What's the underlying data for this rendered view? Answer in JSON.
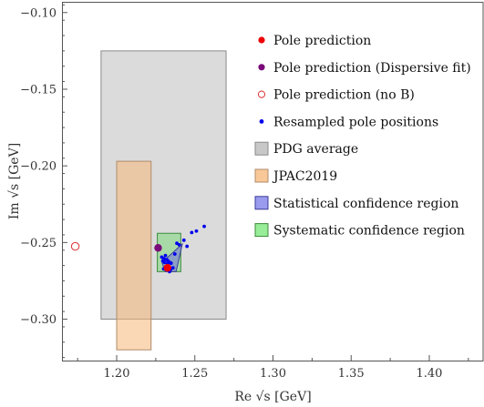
{
  "chart_data": {
    "type": "scatter",
    "xlabel": "Re √s [GeV]",
    "ylabel": "Im √s [GeV]",
    "xlim": [
      1.165,
      1.435
    ],
    "ylim": [
      -0.327,
      -0.093
    ],
    "x_ticks": [
      1.2,
      1.25,
      1.3,
      1.35,
      1.4
    ],
    "x_tick_labels": [
      "1.20",
      "1.25",
      "1.30",
      "1.35",
      "1.40"
    ],
    "y_ticks": [
      -0.1,
      -0.15,
      -0.2,
      -0.25,
      -0.3
    ],
    "y_tick_labels": [
      "−0.10",
      "−0.15",
      "−0.20",
      "−0.25",
      "−0.30"
    ],
    "grid": false,
    "legend_position": "top-right inside",
    "regions": [
      {
        "name": "PDG average",
        "kind": "rect",
        "x": [
          1.19,
          1.27
        ],
        "y": [
          -0.3,
          -0.125
        ],
        "fill": "#c8c8c8",
        "stroke": "#8a8a8a",
        "opacity": 0.65
      },
      {
        "name": "JPAC2019",
        "kind": "rect",
        "x": [
          1.2,
          1.222
        ],
        "y": [
          -0.32,
          -0.197
        ],
        "fill": "#f8b878",
        "stroke": "#b08a6a",
        "opacity": 0.55
      },
      {
        "name": "Systematic confidence region",
        "kind": "rect",
        "x": [
          1.226,
          1.241
        ],
        "y": [
          -0.269,
          -0.244
        ],
        "fill": "#7ed87e",
        "stroke": "#3a8a3a",
        "opacity": 0.55
      },
      {
        "name": "Statistical confidence region",
        "kind": "polygon",
        "points": [
          [
            1.229,
            -0.263
          ],
          [
            1.242,
            -0.251
          ],
          [
            1.238,
            -0.269
          ],
          [
            1.231,
            -0.269
          ]
        ],
        "fill": "#7a7ad8",
        "stroke": "#3b3b99",
        "opacity": 0.6
      }
    ],
    "series": [
      {
        "name": "Resampled pole positions",
        "marker": "dot",
        "color": "#0000ee",
        "x": [
          1.2288,
          1.2295,
          1.2302,
          1.2306,
          1.2312,
          1.232,
          1.2325,
          1.2328,
          1.2335,
          1.234,
          1.2348,
          1.236,
          1.2372,
          1.2385,
          1.24,
          1.243,
          1.245,
          1.248,
          1.251,
          1.256,
          1.232,
          1.2345,
          1.23,
          1.2338
        ],
        "y": [
          -0.2595,
          -0.262,
          -0.2605,
          -0.263,
          -0.2585,
          -0.2612,
          -0.264,
          -0.262,
          -0.2658,
          -0.263,
          -0.2635,
          -0.2665,
          -0.2575,
          -0.2505,
          -0.2515,
          -0.2485,
          -0.2525,
          -0.2435,
          -0.2425,
          -0.2395,
          -0.268,
          -0.2675,
          -0.2672,
          -0.269
        ]
      },
      {
        "name": "Pole prediction",
        "marker": "dot-large",
        "color": "#ee0000",
        "x": [
          1.2325
        ],
        "y": [
          -0.2665
        ]
      },
      {
        "name": "Pole prediction (Dispersive fit)",
        "marker": "dot-large",
        "color": "#7a0a7a",
        "x": [
          1.2265
        ],
        "y": [
          -0.2535
        ]
      },
      {
        "name": "Pole prediction (no B)",
        "marker": "open-circle",
        "color": "#dd3333",
        "x": [
          1.1735
        ],
        "y": [
          -0.2525
        ]
      }
    ],
    "legend": [
      {
        "label": "Pole prediction",
        "symbol": "dot",
        "color": "#ee0000"
      },
      {
        "label": "Pole prediction (Dispersive fit)",
        "symbol": "dot",
        "color": "#7a0a7a"
      },
      {
        "label": "Pole prediction (no B)",
        "symbol": "open-circle",
        "color": "#dd3333"
      },
      {
        "label": "Resampled pole positions",
        "symbol": "small-dot",
        "color": "#0000ee"
      },
      {
        "label": "PDG average",
        "symbol": "square",
        "color": "#c8c8c8",
        "stroke": "#8a8a8a"
      },
      {
        "label": "JPAC2019",
        "symbol": "square",
        "color": "#f8c898",
        "stroke": "#b08a6a"
      },
      {
        "label": "Statistical confidence region",
        "symbol": "square",
        "color": "#9a9aee",
        "stroke": "#3b3b99"
      },
      {
        "label": "Systematic confidence region",
        "symbol": "square",
        "color": "#98ee98",
        "stroke": "#3a8a3a"
      }
    ]
  }
}
